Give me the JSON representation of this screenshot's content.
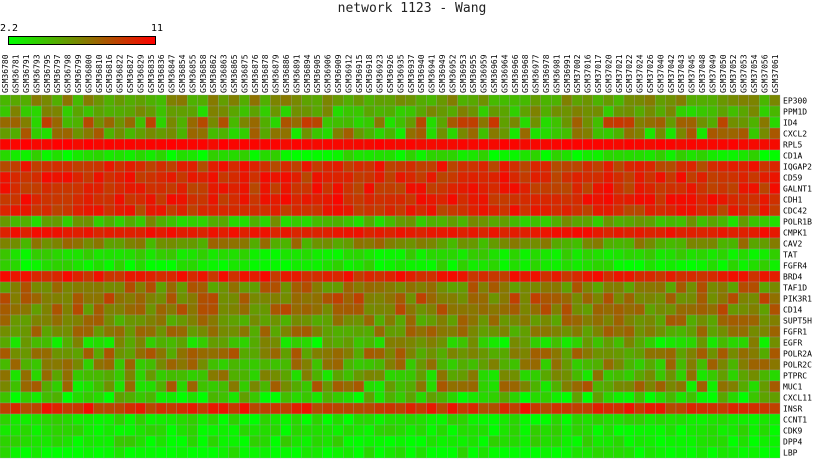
{
  "chart_data": {
    "type": "heatmap",
    "title": "network 1123 - Wang",
    "scale": {
      "min_label": "2.2",
      "max_label": "11",
      "min": 2.2,
      "max": 11,
      "low_color": "#00ff00",
      "mid_color": "#808000",
      "high_color": "#ff0000"
    },
    "columns": [
      "GSM36780",
      "GSM36781",
      "GSM36791",
      "GSM36793",
      "GSM36795",
      "GSM36797",
      "GSM36798",
      "GSM36799",
      "GSM36800",
      "GSM36810",
      "GSM36816",
      "GSM36822",
      "GSM36827",
      "GSM36829",
      "GSM36835",
      "GSM36836",
      "GSM36847",
      "GSM36854",
      "GSM36855",
      "GSM36858",
      "GSM36862",
      "GSM36863",
      "GSM36865",
      "GSM36875",
      "GSM36876",
      "GSM36878",
      "GSM36879",
      "GSM36886",
      "GSM36891",
      "GSM36894",
      "GSM36905",
      "GSM36906",
      "GSM36909",
      "GSM36912",
      "GSM36915",
      "GSM36918",
      "GSM36923",
      "GSM36926",
      "GSM36935",
      "GSM36937",
      "GSM36940",
      "GSM36941",
      "GSM36949",
      "GSM36952",
      "GSM36953",
      "GSM36955",
      "GSM36959",
      "GSM36961",
      "GSM36964",
      "GSM36966",
      "GSM36968",
      "GSM36977",
      "GSM36978",
      "GSM36981",
      "GSM36991",
      "GSM37002",
      "GSM37016",
      "GSM37017",
      "GSM37020",
      "GSM37021",
      "GSM37022",
      "GSM37024",
      "GSM37026",
      "GSM37040",
      "GSM37042",
      "GSM37043",
      "GSM37045",
      "GSM37048",
      "GSM37049",
      "GSM37050",
      "GSM37052",
      "GSM37053",
      "GSM37054",
      "GSM37056",
      "GSM37061"
    ],
    "rows": [
      "EP300",
      "PPM1D",
      "ID4",
      "CXCL2",
      "RPL5",
      "CD1A",
      "IQGAP2",
      "CD59",
      "GALNT1",
      "CDH1",
      "CDC42",
      "POLR1B",
      "CMPK1",
      "CAV2",
      "TAT",
      "FGFR4",
      "BRD4",
      "TAF1D",
      "PIK3R1",
      "CD14",
      "SUPT5H",
      "FGFR1",
      "EGFR",
      "POLR2A",
      "POLR2C",
      "PTPRC",
      "MUC1",
      "CXCL11",
      "INSR",
      "CCNT1",
      "CDK9",
      "DPP4",
      "LBP"
    ],
    "row_levels": [
      5.8,
      5.0,
      6.2,
      5.5,
      10.8,
      3.0,
      9.4,
      9.6,
      9.6,
      9.8,
      9.5,
      4.8,
      10.2,
      6.0,
      3.3,
      3.0,
      9.8,
      6.8,
      7.4,
      7.0,
      6.4,
      6.3,
      4.4,
      6.6,
      5.8,
      5.2,
      5.4,
      3.6,
      9.4,
      3.0,
      3.0,
      3.0,
      2.7
    ],
    "row_spread": [
      1.3,
      1.8,
      3.0,
      2.6,
      0.2,
      0.9,
      1.1,
      1.1,
      1.1,
      1.0,
      1.1,
      1.6,
      0.5,
      1.6,
      0.9,
      0.9,
      0.9,
      1.6,
      1.5,
      1.6,
      1.6,
      1.6,
      2.4,
      1.6,
      2.0,
      2.2,
      2.8,
      2.0,
      1.2,
      0.9,
      0.9,
      1.1,
      1.0
    ]
  }
}
